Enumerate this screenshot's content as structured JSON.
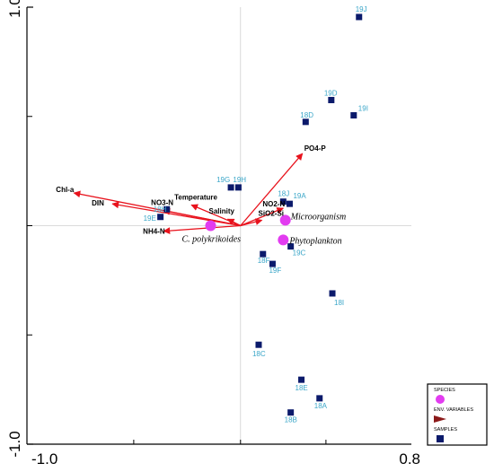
{
  "chart_data": {
    "type": "scatter",
    "title": "",
    "xlabel": "",
    "ylabel": "",
    "xlim": [
      -1.0,
      0.8
    ],
    "ylim": [
      -1.0,
      1.0
    ],
    "xticks": [
      {
        "value": -1.0,
        "label": "-1.0"
      },
      {
        "value": 0.8,
        "label": "0.8"
      }
    ],
    "yticks": [
      {
        "value": 1.0,
        "label": "1.0"
      },
      {
        "value": -1.0,
        "label": "-1.0"
      }
    ],
    "grid": false,
    "zero_lines": true,
    "colors": {
      "samples": "#0b1a6b",
      "sample_labels": "#3aa6c8",
      "env": "#e8121c",
      "species": "#e23cf0"
    },
    "samples": [
      {
        "label": "19J",
        "x": 0.555,
        "y": 0.955
      },
      {
        "label": "19D",
        "x": 0.425,
        "y": 0.575
      },
      {
        "label": "19I",
        "x": 0.53,
        "y": 0.505
      },
      {
        "label": "18D",
        "x": 0.305,
        "y": 0.475
      },
      {
        "label": "19G",
        "x": -0.045,
        "y": 0.175
      },
      {
        "label": "19H",
        "x": -0.01,
        "y": 0.175
      },
      {
        "label": "18J",
        "x": 0.2,
        "y": 0.11
      },
      {
        "label": "19A",
        "x": 0.23,
        "y": 0.1
      },
      {
        "label": "18H",
        "x": -0.345,
        "y": 0.075
      },
      {
        "label": "19E",
        "x": -0.375,
        "y": 0.04
      },
      {
        "label": "19C",
        "x": 0.235,
        "y": -0.095
      },
      {
        "label": "18F",
        "x": 0.105,
        "y": -0.13
      },
      {
        "label": "19F",
        "x": 0.15,
        "y": -0.175
      },
      {
        "label": "18I",
        "x": 0.43,
        "y": -0.31
      },
      {
        "label": "18C",
        "x": 0.085,
        "y": -0.545
      },
      {
        "label": "18E",
        "x": 0.285,
        "y": -0.705
      },
      {
        "label": "18A",
        "x": 0.37,
        "y": -0.79
      },
      {
        "label": "18B",
        "x": 0.235,
        "y": -0.855
      }
    ],
    "env_variables": [
      {
        "name": "PO4-P",
        "x": 0.29,
        "y": 0.33
      },
      {
        "name": "Chl-a",
        "x": -0.78,
        "y": 0.15
      },
      {
        "name": "DIN",
        "x": -0.6,
        "y": 0.1
      },
      {
        "name": "NO3-N",
        "x": -0.36,
        "y": 0.07
      },
      {
        "name": "Temperature",
        "x": -0.23,
        "y": 0.095
      },
      {
        "name": "NH4-N",
        "x": -0.36,
        "y": -0.025
      },
      {
        "name": "Salinity",
        "x": -0.06,
        "y": 0.03
      },
      {
        "name": "NO2-N",
        "x": 0.2,
        "y": 0.08
      },
      {
        "name": "SiO2-Si",
        "x": 0.1,
        "y": 0.025
      }
    ],
    "species": [
      {
        "name": "C. polykrikoides",
        "x": -0.14,
        "y": 0.0
      },
      {
        "name": "Microorganism",
        "x": 0.21,
        "y": 0.025
      },
      {
        "name": "Phytoplankton",
        "x": 0.2,
        "y": -0.065
      }
    ],
    "legend": {
      "position": "bottom-right",
      "items": [
        {
          "label": "SPECIES",
          "marker": "circle"
        },
        {
          "label": "ENV. VARIABLES",
          "marker": "arrow"
        },
        {
          "label": "SAMPLES",
          "marker": "square"
        }
      ]
    }
  }
}
